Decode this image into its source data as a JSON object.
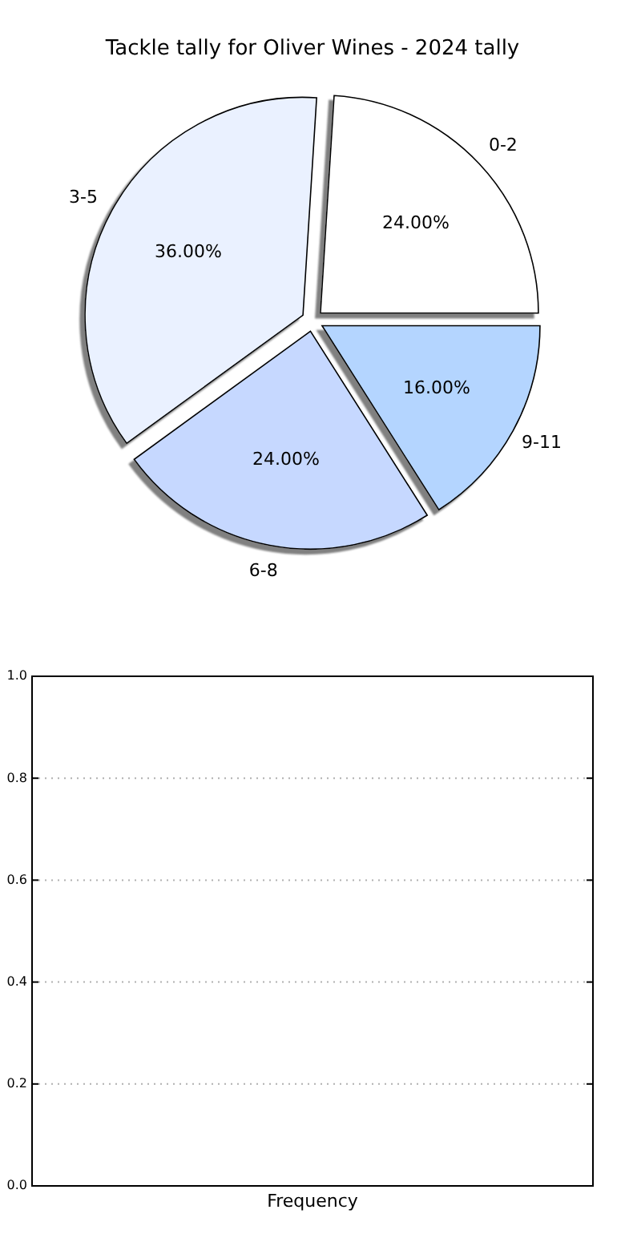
{
  "chart_data": [
    {
      "type": "pie",
      "title": "Tackle tally for Oliver Wines - 2024 tally",
      "categories": [
        "0-2",
        "3-5",
        "6-8",
        "9-11"
      ],
      "values": [
        24,
        36,
        24,
        16
      ],
      "colors": [
        "#ffffff",
        "#eaf1ff",
        "#c6d8ff",
        "#b4d5ff"
      ],
      "value_labels": [
        "24.00%",
        "36.00%",
        "24.00%",
        "16.00%"
      ]
    },
    {
      "type": "bar",
      "categories": [
        null
      ],
      "values": [
        0
      ],
      "xlabel": "Frequency",
      "ylim": [
        0,
        1
      ],
      "yticks": [
        {
          "value": 0,
          "label": "0.0"
        },
        0.2,
        0.4,
        0.6,
        0.8,
        {
          "value": 1,
          "label": "1.0"
        }
      ],
      "grid": "y"
    }
  ]
}
